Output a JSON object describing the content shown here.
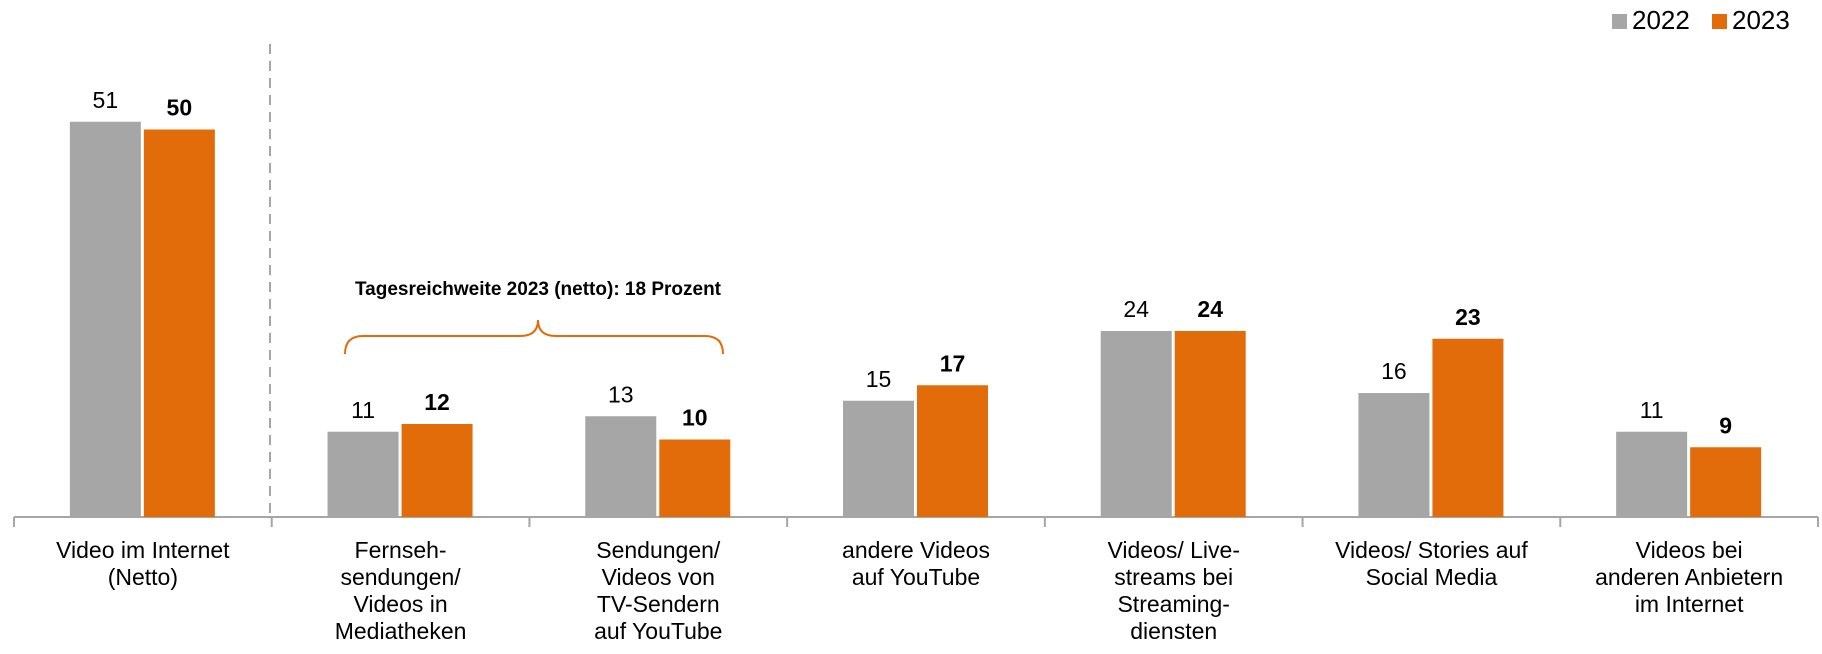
{
  "chart_data": {
    "type": "bar",
    "categories": [
      "Video im Internet\n(Netto)",
      "Fernseh-\nsendungen/\nVideos in\nMediatheken",
      "Sendungen/\nVideos von\nTV-Sendern\nauf YouTube",
      "andere Videos\nauf YouTube",
      "Videos/ Live-\nstreams bei\nStreaming-\ndiensten",
      "Videos/ Stories auf\nSocial Media",
      "Videos bei\nanderen Anbietern\nim Internet"
    ],
    "series": [
      {
        "name": "2022",
        "color": "#a6a6a6",
        "values": [
          51,
          11,
          13,
          15,
          24,
          16,
          11
        ]
      },
      {
        "name": "2023",
        "color": "#e36c0a",
        "values": [
          50,
          12,
          10,
          17,
          24,
          23,
          9
        ]
      }
    ],
    "annotation": "Tagesreichweite 2023 (netto): 18 Prozent",
    "legend": "top-right"
  }
}
